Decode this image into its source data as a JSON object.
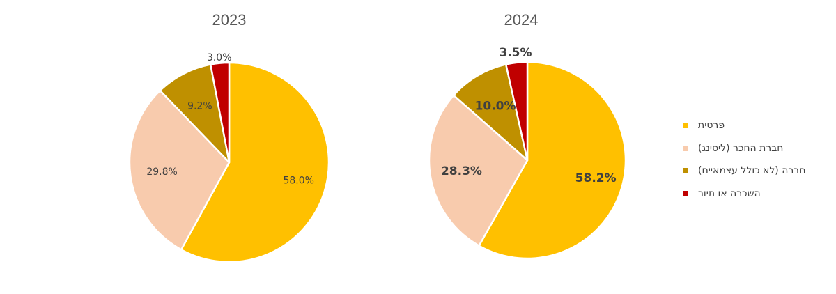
{
  "chart_data": [
    {
      "type": "pie",
      "title": "2023",
      "categories": [
        "פרטית",
        "חברת החכר (ליסינג)",
        "חברה (לא כולל עצמאיים)",
        "השכרה או תיור"
      ],
      "values": [
        58.0,
        29.8,
        9.2,
        3.0
      ],
      "data_labels": [
        "58.0%",
        "29.8%",
        "9.2%",
        "3.0%"
      ],
      "colors": [
        "#FFC000",
        "#F8CBAD",
        "#BF9000",
        "#C00000"
      ]
    },
    {
      "type": "pie",
      "title": "2024",
      "categories": [
        "פרטית",
        "חברת החכר (ליסינג)",
        "חברה (לא כולל עצמאיים)",
        "השכרה או תיור"
      ],
      "values": [
        58.2,
        28.3,
        10.0,
        3.5
      ],
      "data_labels": [
        "58.2%",
        "28.3%",
        "10.0%",
        "3.5%"
      ],
      "colors": [
        "#FFC000",
        "#F8CBAD",
        "#BF9000",
        "#C00000"
      ]
    }
  ],
  "legend": {
    "placement": "right",
    "items": [
      {
        "label": "פרטית",
        "color": "#FFC000"
      },
      {
        "label": "חברת החכר (ליסינג)",
        "color": "#F8CBAD"
      },
      {
        "label": "חברה (לא כולל עצמאיים)",
        "color": "#BF9000"
      },
      {
        "label": "השכרה או תיור",
        "color": "#C00000"
      }
    ]
  }
}
